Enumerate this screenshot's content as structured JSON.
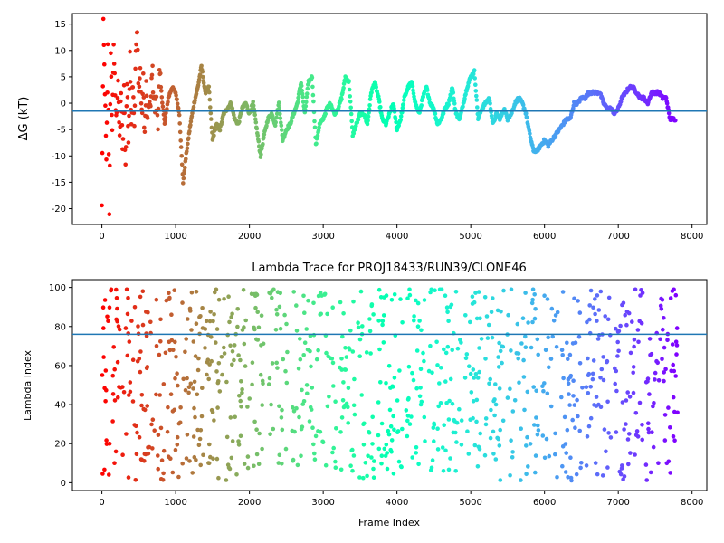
{
  "chart_data": [
    {
      "type": "scatter",
      "title": "",
      "xlabel": "",
      "ylabel": "ΔG (kT)",
      "xlim": [
        -400,
        8200
      ],
      "ylim": [
        -23,
        17
      ],
      "xticks": [
        0,
        1000,
        2000,
        3000,
        4000,
        5000,
        6000,
        7000,
        8000
      ],
      "yticks": [
        -20,
        -15,
        -10,
        -5,
        0,
        5,
        10,
        15
      ],
      "hline": -1.5,
      "hline_color": "#1f77b4",
      "colormap": "rainbow",
      "x_max_frame": 7800,
      "trace": [
        [
          0,
          -20
        ],
        [
          20,
          14
        ],
        [
          40,
          3
        ],
        [
          60,
          -12
        ],
        [
          80,
          10
        ],
        [
          100,
          -20
        ],
        [
          120,
          8
        ],
        [
          140,
          -5
        ],
        [
          160,
          12
        ],
        [
          180,
          0
        ],
        [
          200,
          -3
        ],
        [
          220,
          5
        ],
        [
          240,
          -8
        ],
        [
          260,
          3
        ],
        [
          280,
          -10
        ],
        [
          300,
          2
        ],
        [
          320,
          -12
        ],
        [
          340,
          4
        ],
        [
          360,
          -7
        ],
        [
          380,
          8
        ],
        [
          400,
          -3
        ],
        [
          420,
          5
        ],
        [
          440,
          -4
        ],
        [
          460,
          10
        ],
        [
          480,
          13
        ],
        [
          500,
          2
        ],
        [
          520,
          6
        ],
        [
          540,
          -3
        ],
        [
          560,
          4
        ],
        [
          580,
          -6
        ],
        [
          600,
          3
        ],
        [
          620,
          -4
        ],
        [
          640,
          1
        ],
        [
          660,
          -2
        ],
        [
          680,
          7
        ],
        [
          700,
          2
        ],
        [
          720,
          -1
        ],
        [
          740,
          0
        ],
        [
          760,
          -3
        ],
        [
          780,
          5
        ],
        [
          800,
          3
        ],
        [
          850,
          -4
        ],
        [
          900,
          1
        ],
        [
          950,
          3
        ],
        [
          1000,
          2
        ],
        [
          1050,
          -2
        ],
        [
          1100,
          -15
        ],
        [
          1150,
          -9
        ],
        [
          1200,
          -4
        ],
        [
          1250,
          0
        ],
        [
          1300,
          3
        ],
        [
          1350,
          7
        ],
        [
          1400,
          2
        ],
        [
          1450,
          3
        ],
        [
          1500,
          -7
        ],
        [
          1550,
          -4
        ],
        [
          1600,
          -5
        ],
        [
          1650,
          -2
        ],
        [
          1700,
          -1
        ],
        [
          1750,
          0
        ],
        [
          1800,
          -3
        ],
        [
          1850,
          -4
        ],
        [
          1900,
          -1
        ],
        [
          1950,
          0
        ],
        [
          2000,
          -2
        ],
        [
          2050,
          0
        ],
        [
          2100,
          -5
        ],
        [
          2150,
          -10
        ],
        [
          2200,
          -6
        ],
        [
          2250,
          -3
        ],
        [
          2300,
          -2
        ],
        [
          2350,
          -4
        ],
        [
          2400,
          0
        ],
        [
          2450,
          -7
        ],
        [
          2500,
          -5
        ],
        [
          2550,
          -4
        ],
        [
          2600,
          -2
        ],
        [
          2650,
          0
        ],
        [
          2700,
          4
        ],
        [
          2750,
          -2
        ],
        [
          2800,
          4
        ],
        [
          2850,
          5
        ],
        [
          2900,
          -8
        ],
        [
          2950,
          -4
        ],
        [
          3000,
          -3
        ],
        [
          3050,
          -1
        ],
        [
          3100,
          0
        ],
        [
          3150,
          -2
        ],
        [
          3200,
          -1
        ],
        [
          3250,
          1
        ],
        [
          3300,
          5
        ],
        [
          3350,
          4
        ],
        [
          3400,
          -6
        ],
        [
          3450,
          -4
        ],
        [
          3500,
          -2
        ],
        [
          3550,
          -2
        ],
        [
          3600,
          -4
        ],
        [
          3650,
          2
        ],
        [
          3700,
          4
        ],
        [
          3750,
          1
        ],
        [
          3800,
          -3
        ],
        [
          3850,
          -4
        ],
        [
          3900,
          -2
        ],
        [
          3950,
          0
        ],
        [
          4000,
          -5
        ],
        [
          4050,
          -3
        ],
        [
          4100,
          1
        ],
        [
          4150,
          3
        ],
        [
          4200,
          4
        ],
        [
          4250,
          0
        ],
        [
          4300,
          -2
        ],
        [
          4350,
          1
        ],
        [
          4400,
          3
        ],
        [
          4450,
          0
        ],
        [
          4500,
          -1
        ],
        [
          4550,
          -4
        ],
        [
          4600,
          -3
        ],
        [
          4650,
          -1
        ],
        [
          4700,
          0
        ],
        [
          4750,
          3
        ],
        [
          4800,
          -2
        ],
        [
          4850,
          -3
        ],
        [
          4900,
          0
        ],
        [
          4950,
          3
        ],
        [
          5000,
          5
        ],
        [
          5050,
          6
        ],
        [
          5100,
          -3
        ],
        [
          5150,
          -1
        ],
        [
          5200,
          0
        ],
        [
          5250,
          1
        ],
        [
          5300,
          -4
        ],
        [
          5350,
          -2
        ],
        [
          5400,
          -3
        ],
        [
          5450,
          -1
        ],
        [
          5500,
          -3
        ],
        [
          5550,
          -2
        ],
        [
          5600,
          0
        ],
        [
          5650,
          1
        ],
        [
          5700,
          0
        ],
        [
          5750,
          -2
        ],
        [
          5800,
          -6
        ],
        [
          5850,
          -9
        ],
        [
          5900,
          -9
        ],
        [
          5950,
          -8
        ],
        [
          6000,
          -7
        ],
        [
          6050,
          -8
        ],
        [
          6100,
          -7
        ],
        [
          6150,
          -6
        ],
        [
          6200,
          -5
        ],
        [
          6250,
          -4
        ],
        [
          6300,
          -3
        ],
        [
          6350,
          -3
        ],
        [
          6400,
          0
        ],
        [
          6450,
          0
        ],
        [
          6500,
          1
        ],
        [
          6550,
          1
        ],
        [
          6600,
          2
        ],
        [
          6650,
          2
        ],
        [
          6700,
          2
        ],
        [
          6750,
          2
        ],
        [
          6800,
          0
        ],
        [
          6850,
          -1
        ],
        [
          6900,
          -1
        ],
        [
          6950,
          -2
        ],
        [
          7000,
          -1
        ],
        [
          7050,
          1
        ],
        [
          7100,
          2
        ],
        [
          7150,
          3
        ],
        [
          7200,
          3
        ],
        [
          7250,
          2
        ],
        [
          7300,
          1
        ],
        [
          7350,
          1
        ],
        [
          7400,
          0
        ],
        [
          7450,
          2
        ],
        [
          7500,
          2
        ],
        [
          7550,
          2
        ],
        [
          7600,
          1
        ],
        [
          7650,
          1
        ],
        [
          7700,
          -3
        ],
        [
          7750,
          -3
        ],
        [
          7780,
          -3
        ]
      ]
    },
    {
      "type": "scatter",
      "title": "Lambda Trace for PROJ18433/RUN39/CLONE46",
      "xlabel": "Frame Index",
      "ylabel": "Lambda Index",
      "xlim": [
        -400,
        8200
      ],
      "ylim": [
        -4,
        104
      ],
      "xticks": [
        0,
        1000,
        2000,
        3000,
        4000,
        5000,
        6000,
        7000,
        8000
      ],
      "yticks": [
        0,
        20,
        40,
        60,
        80,
        100
      ],
      "hline": 76,
      "hline_color": "#1f77b4",
      "colormap": "rainbow",
      "x_max_frame": 7800,
      "lambda_range": [
        0,
        99
      ],
      "points_per_frame_block": 8,
      "empty_gaps": [
        [
          2200,
          2260
        ],
        [
          2520,
          2560
        ],
        [
          3180,
          3220
        ],
        [
          3430,
          3470
        ],
        [
          3700,
          3740
        ],
        [
          4080,
          4110
        ],
        [
          4380,
          4420
        ],
        [
          4880,
          4920
        ],
        [
          5150,
          5190
        ],
        [
          5450,
          5490
        ],
        [
          5920,
          5960
        ],
        [
          6180,
          6220
        ],
        [
          6520,
          6560
        ],
        [
          6900,
          6940
        ],
        [
          7330,
          7370
        ]
      ]
    }
  ]
}
